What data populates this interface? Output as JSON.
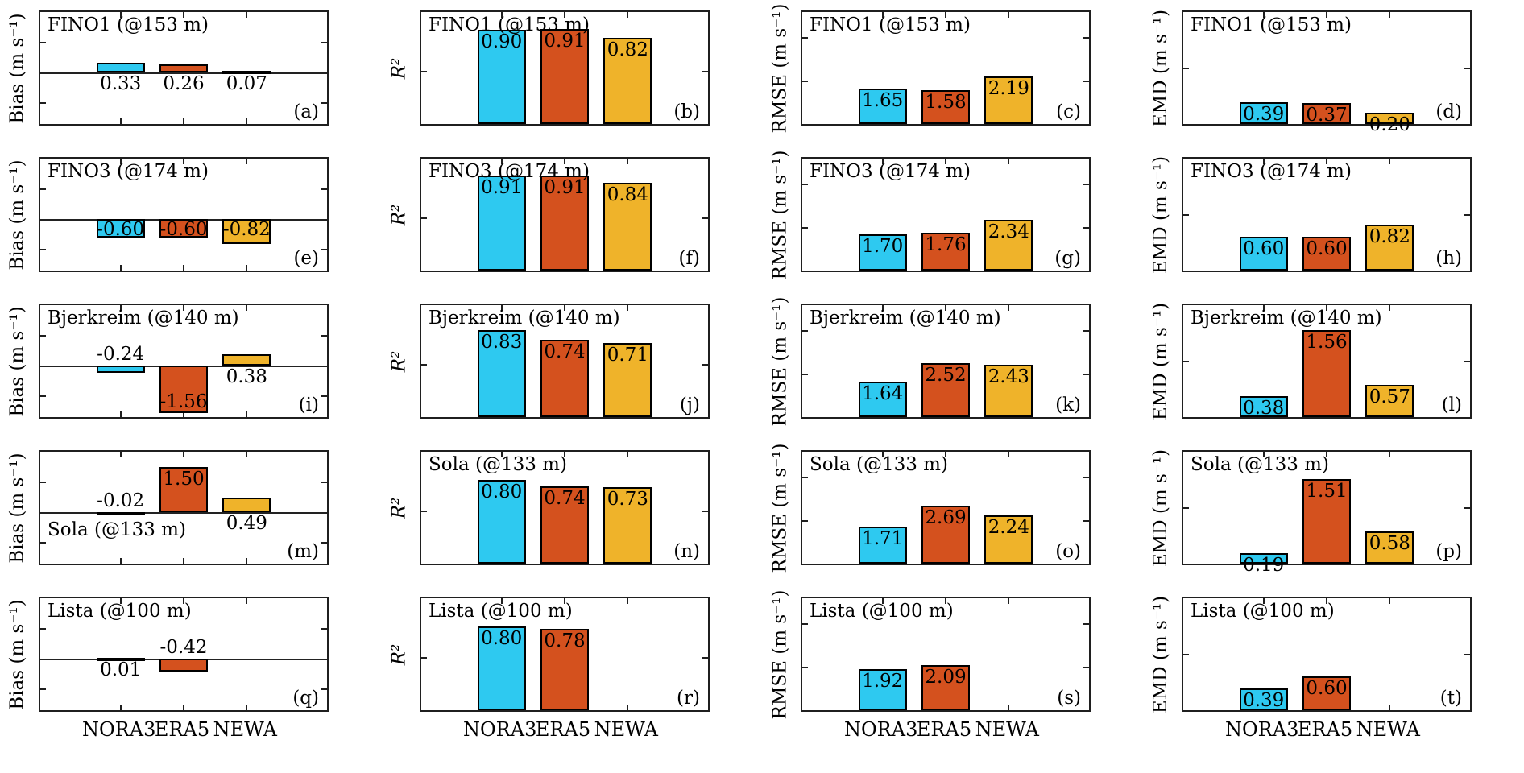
{
  "figure_background": "#ffffff",
  "axis_color": "#1f1f1f",
  "chart_data": {
    "type": "bar",
    "layout": {
      "rows": 5,
      "cols": 4,
      "grid": false,
      "legend": "none",
      "box": true,
      "y_tick_labels_shown": false,
      "x_tick_labels_only_bottom_row": true
    },
    "categories": [
      "NORA3",
      "ERA5",
      "NEWA"
    ],
    "bar_colors": [
      "#2EC9F0",
      "#D4511E",
      "#EFB32A"
    ],
    "bar_edge_color": "#000000",
    "sites": [
      "FINO1 (@153 m)",
      "FINO3 (@174 m)",
      "Bjerkreim (@140 m)",
      "Sola (@133 m)",
      "Lista (@100 m)"
    ],
    "metric_columns": [
      {
        "key": "bias",
        "ylabel": "Bias (m s⁻¹)",
        "italic": false,
        "ylim": [
          -1.7,
          2.0
        ],
        "zero_line": true,
        "yticks": [
          1,
          -1
        ]
      },
      {
        "key": "r2",
        "ylabel": "R²",
        "italic": true,
        "ylim": [
          0,
          1.07
        ],
        "zero_line": false,
        "yticks": [
          0.5
        ]
      },
      {
        "key": "rmse",
        "ylabel": "RMSE (m s⁻¹)",
        "italic": false,
        "ylim": [
          0,
          5.2
        ],
        "zero_line": false,
        "yticks": [
          2,
          4
        ]
      },
      {
        "key": "emd",
        "ylabel": "EMD (m s⁻¹)",
        "italic": false,
        "ylim": [
          0,
          2.0
        ],
        "zero_line": false,
        "yticks": [
          1
        ]
      }
    ],
    "subplots": [
      {
        "letter": "(a)",
        "row": 0,
        "col": 0,
        "title": "FINO1 (@153 m)",
        "title_position": "top-left",
        "values": [
          0.33,
          0.26,
          0.07
        ]
      },
      {
        "letter": "(b)",
        "row": 0,
        "col": 1,
        "title": "FINO1 (@153 m)",
        "title_position": "top-left",
        "values": [
          0.9,
          0.91,
          0.82
        ]
      },
      {
        "letter": "(c)",
        "row": 0,
        "col": 2,
        "title": "FINO1 (@153 m)",
        "title_position": "top-left",
        "values": [
          1.65,
          1.58,
          2.19
        ]
      },
      {
        "letter": "(d)",
        "row": 0,
        "col": 3,
        "title": "FINO1 (@153 m)",
        "title_position": "top-left",
        "values": [
          0.39,
          0.37,
          0.2
        ]
      },
      {
        "letter": "(e)",
        "row": 1,
        "col": 0,
        "title": "FINO3 (@174 m)",
        "title_position": "top-left",
        "values": [
          -0.6,
          -0.6,
          -0.82
        ]
      },
      {
        "letter": "(f)",
        "row": 1,
        "col": 1,
        "title": "FINO3 (@174 m)",
        "title_position": "top-left",
        "values": [
          0.91,
          0.91,
          0.84
        ]
      },
      {
        "letter": "(g)",
        "row": 1,
        "col": 2,
        "title": "FINO3 (@174 m)",
        "title_position": "top-left",
        "values": [
          1.7,
          1.76,
          2.34
        ]
      },
      {
        "letter": "(h)",
        "row": 1,
        "col": 3,
        "title": "FINO3 (@174 m)",
        "title_position": "top-left",
        "values": [
          0.6,
          0.6,
          0.82
        ]
      },
      {
        "letter": "(i)",
        "row": 2,
        "col": 0,
        "title": "Bjerkreim (@140 m)",
        "title_position": "top-left",
        "values": [
          -0.24,
          -1.56,
          0.38
        ]
      },
      {
        "letter": "(j)",
        "row": 2,
        "col": 1,
        "title": "Bjerkreim (@140 m)",
        "title_position": "top-left",
        "values": [
          0.83,
          0.74,
          0.71
        ]
      },
      {
        "letter": "(k)",
        "row": 2,
        "col": 2,
        "title": "Bjerkreim (@140 m)",
        "title_position": "top-left",
        "values": [
          1.64,
          2.52,
          2.43
        ]
      },
      {
        "letter": "(l)",
        "row": 2,
        "col": 3,
        "title": "Bjerkreim (@140 m)",
        "title_position": "top-left",
        "values": [
          0.38,
          1.56,
          0.57
        ]
      },
      {
        "letter": "(m)",
        "row": 3,
        "col": 0,
        "title": "Sola (@133 m)",
        "title_position": "lower-left",
        "values": [
          -0.02,
          1.5,
          0.49
        ]
      },
      {
        "letter": "(n)",
        "row": 3,
        "col": 1,
        "title": "Sola (@133 m)",
        "title_position": "top-left",
        "values": [
          0.8,
          0.74,
          0.73
        ]
      },
      {
        "letter": "(o)",
        "row": 3,
        "col": 2,
        "title": "Sola (@133 m)",
        "title_position": "top-left",
        "values": [
          1.71,
          2.69,
          2.24
        ]
      },
      {
        "letter": "(p)",
        "row": 3,
        "col": 3,
        "title": "Sola (@133 m)",
        "title_position": "top-left",
        "values": [
          0.19,
          1.51,
          0.58
        ]
      },
      {
        "letter": "(q)",
        "row": 4,
        "col": 0,
        "title": "Lista (@100 m)",
        "title_position": "top-left",
        "values": [
          0.01,
          -0.42,
          null
        ]
      },
      {
        "letter": "(r)",
        "row": 4,
        "col": 1,
        "title": "Lista (@100 m)",
        "title_position": "top-left",
        "values": [
          0.8,
          0.78,
          null
        ]
      },
      {
        "letter": "(s)",
        "row": 4,
        "col": 2,
        "title": "Lista (@100 m)",
        "title_position": "top-left",
        "values": [
          1.92,
          2.09,
          null
        ]
      },
      {
        "letter": "(t)",
        "row": 4,
        "col": 3,
        "title": "Lista (@100 m)",
        "title_position": "top-left",
        "values": [
          0.39,
          0.6,
          null
        ]
      }
    ]
  }
}
